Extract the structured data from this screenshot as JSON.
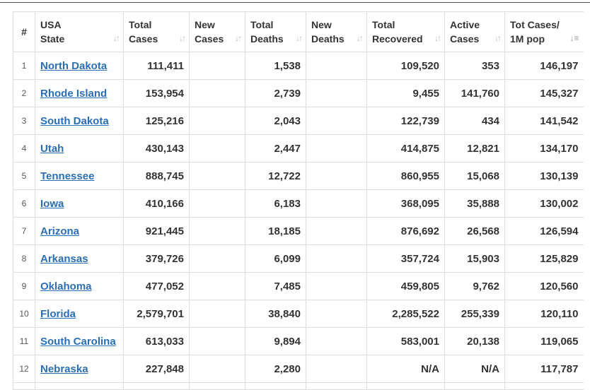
{
  "table": {
    "headers": [
      {
        "line1": "#",
        "line2": ""
      },
      {
        "line1": "USA",
        "line2": "State"
      },
      {
        "line1": "Total",
        "line2": "Cases"
      },
      {
        "line1": "New",
        "line2": "Cases"
      },
      {
        "line1": "Total",
        "line2": "Deaths"
      },
      {
        "line1": "New",
        "line2": "Deaths"
      },
      {
        "line1": "Total",
        "line2": "Recovered"
      },
      {
        "line1": "Active",
        "line2": "Cases"
      },
      {
        "line1": "Tot Cases/",
        "line2": "1M pop"
      }
    ],
    "sort_icon": "sort-updown-icon",
    "active_sort_icon": "sort-desc-icon",
    "rows": [
      {
        "num": "1",
        "state": "North Dakota",
        "total_cases": "111,411",
        "new_cases": "",
        "total_deaths": "1,538",
        "new_deaths": "",
        "total_recovered": "109,520",
        "active_cases": "353",
        "per_million": "146,197"
      },
      {
        "num": "2",
        "state": "Rhode Island",
        "total_cases": "153,954",
        "new_cases": "",
        "total_deaths": "2,739",
        "new_deaths": "",
        "total_recovered": "9,455",
        "active_cases": "141,760",
        "per_million": "145,327"
      },
      {
        "num": "3",
        "state": "South Dakota",
        "total_cases": "125,216",
        "new_cases": "",
        "total_deaths": "2,043",
        "new_deaths": "",
        "total_recovered": "122,739",
        "active_cases": "434",
        "per_million": "141,542"
      },
      {
        "num": "4",
        "state": "Utah",
        "total_cases": "430,143",
        "new_cases": "",
        "total_deaths": "2,447",
        "new_deaths": "",
        "total_recovered": "414,875",
        "active_cases": "12,821",
        "per_million": "134,170"
      },
      {
        "num": "5",
        "state": "Tennessee",
        "total_cases": "888,745",
        "new_cases": "",
        "total_deaths": "12,722",
        "new_deaths": "",
        "total_recovered": "860,955",
        "active_cases": "15,068",
        "per_million": "130,139"
      },
      {
        "num": "6",
        "state": "Iowa",
        "total_cases": "410,166",
        "new_cases": "",
        "total_deaths": "6,183",
        "new_deaths": "",
        "total_recovered": "368,095",
        "active_cases": "35,888",
        "per_million": "130,002"
      },
      {
        "num": "7",
        "state": "Arizona",
        "total_cases": "921,445",
        "new_cases": "",
        "total_deaths": "18,185",
        "new_deaths": "",
        "total_recovered": "876,692",
        "active_cases": "26,568",
        "per_million": "126,594"
      },
      {
        "num": "8",
        "state": "Arkansas",
        "total_cases": "379,726",
        "new_cases": "",
        "total_deaths": "6,099",
        "new_deaths": "",
        "total_recovered": "357,724",
        "active_cases": "15,903",
        "per_million": "125,829"
      },
      {
        "num": "9",
        "state": "Oklahoma",
        "total_cases": "477,052",
        "new_cases": "",
        "total_deaths": "7,485",
        "new_deaths": "",
        "total_recovered": "459,805",
        "active_cases": "9,762",
        "per_million": "120,560"
      },
      {
        "num": "10",
        "state": "Florida",
        "total_cases": "2,579,701",
        "new_cases": "",
        "total_deaths": "38,840",
        "new_deaths": "",
        "total_recovered": "2,285,522",
        "active_cases": "255,339",
        "per_million": "120,110"
      },
      {
        "num": "11",
        "state": "South Carolina",
        "total_cases": "613,033",
        "new_cases": "",
        "total_deaths": "9,894",
        "new_deaths": "",
        "total_recovered": "583,001",
        "active_cases": "20,138",
        "per_million": "119,065"
      },
      {
        "num": "12",
        "state": "Nebraska",
        "total_cases": "227,848",
        "new_cases": "",
        "total_deaths": "2,280",
        "new_deaths": "",
        "total_recovered": "N/A",
        "active_cases": "N/A",
        "per_million": "117,787"
      }
    ]
  }
}
